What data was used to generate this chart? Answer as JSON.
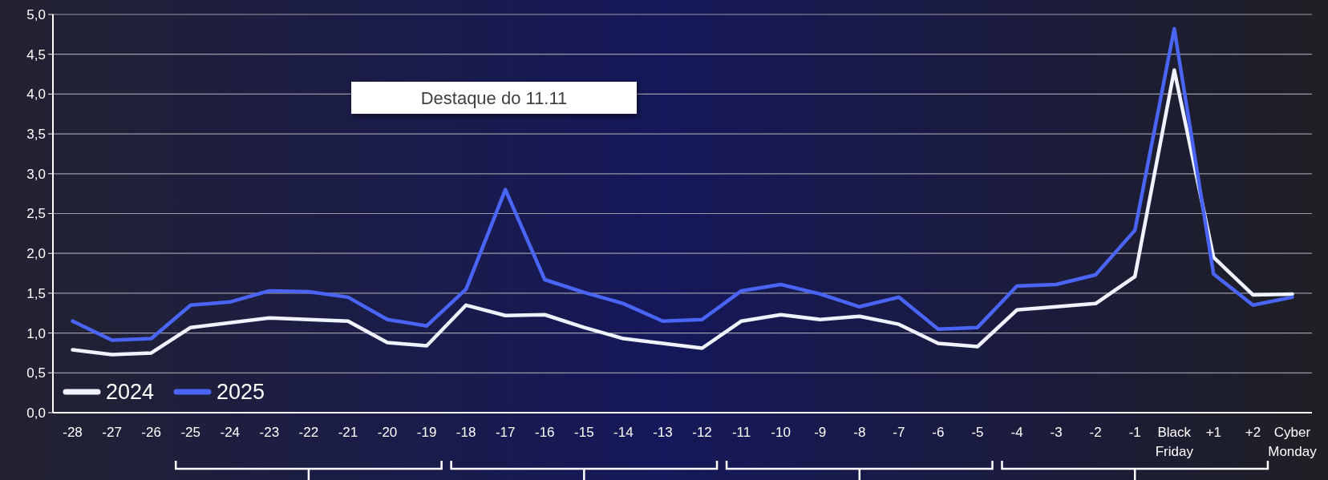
{
  "chart_data": {
    "type": "line",
    "categories": [
      "-28",
      "-27",
      "-26",
      "-25",
      "-24",
      "-23",
      "-22",
      "-21",
      "-20",
      "-19",
      "-18",
      "-17",
      "-16",
      "-15",
      "-14",
      "-13",
      "-12",
      "-11",
      "-10",
      "-9",
      "-8",
      "-7",
      "-6",
      "-5",
      "-4",
      "-3",
      "-2",
      "-1",
      "Black Friday",
      "+1",
      "+2",
      "Cyber Monday"
    ],
    "series": [
      {
        "name": "2024",
        "color": "#eef3ff",
        "values": [
          0.79,
          0.73,
          0.75,
          1.07,
          1.13,
          1.19,
          1.17,
          1.15,
          0.88,
          0.84,
          1.35,
          1.22,
          1.23,
          1.07,
          0.93,
          0.87,
          0.81,
          1.15,
          1.23,
          1.17,
          1.21,
          1.11,
          0.87,
          0.83,
          1.29,
          1.33,
          1.37,
          1.71,
          4.3,
          1.95,
          1.48,
          1.49
        ]
      },
      {
        "name": "2025",
        "color": "#4a64f5",
        "values": [
          1.15,
          0.91,
          0.93,
          1.35,
          1.39,
          1.53,
          1.52,
          1.45,
          1.17,
          1.09,
          1.55,
          2.8,
          1.67,
          1.51,
          1.37,
          1.15,
          1.17,
          1.53,
          1.61,
          1.49,
          1.33,
          1.45,
          1.05,
          1.07,
          1.59,
          1.61,
          1.73,
          2.29,
          4.82,
          1.74,
          1.35,
          1.45
        ]
      }
    ],
    "ylim": [
      0,
      5
    ],
    "yticks": [
      {
        "value": 0,
        "label": "0,0"
      },
      {
        "value": 0.5,
        "label": "0,5"
      },
      {
        "value": 1,
        "label": "1,0"
      },
      {
        "value": 1.5,
        "label": "1,5"
      },
      {
        "value": 2,
        "label": "2,0"
      },
      {
        "value": 2.5,
        "label": "2,5"
      },
      {
        "value": 3,
        "label": "3,0"
      },
      {
        "value": 3.5,
        "label": "3,5"
      },
      {
        "value": 4,
        "label": "4,0"
      },
      {
        "value": 4.5,
        "label": "4,5"
      },
      {
        "value": 5,
        "label": "5,0"
      }
    ],
    "grid": "y",
    "legend": "bottom left",
    "marker": "none",
    "line_style": "solid",
    "annotations": [
      "Destaque do 11.11"
    ]
  }
}
